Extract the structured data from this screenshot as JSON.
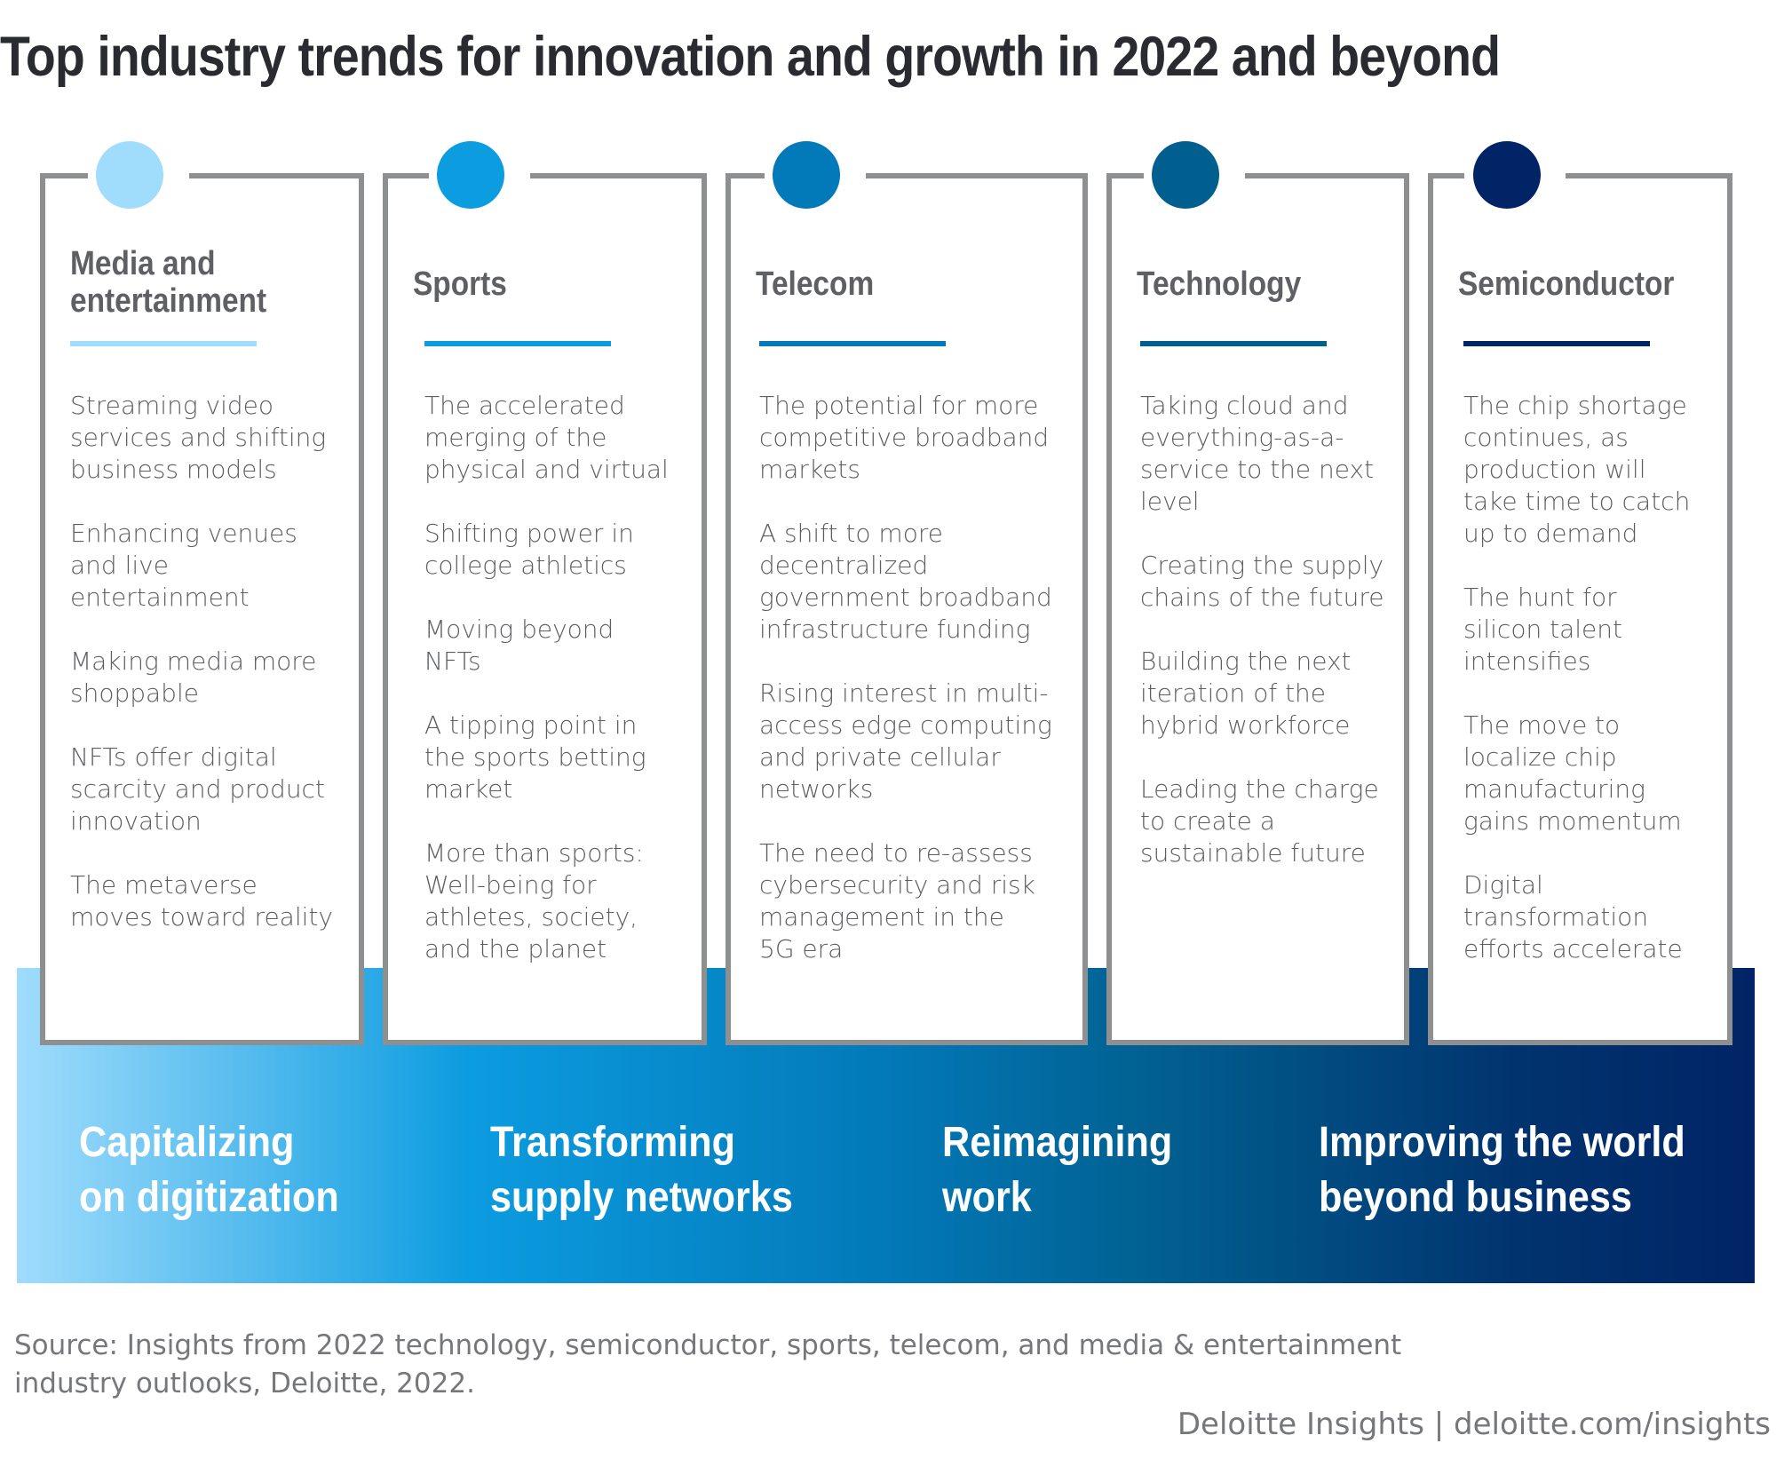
{
  "title": "Top industry trends for innovation and growth in 2022 and beyond",
  "colors": {
    "media": "#a0dcfc",
    "sports": "#0c9ce0",
    "telecom": "#0279b8",
    "technology": "#015f8f",
    "semiconductor": "#012466",
    "border": "#8e8f91"
  },
  "themes": [
    {
      "lines": [
        "Capitalizing",
        "on digitization"
      ]
    },
    {
      "lines": [
        "Transforming",
        "supply networks"
      ]
    },
    {
      "lines": [
        "Reimagining",
        "work"
      ]
    },
    {
      "lines": [
        "Improving the world",
        "beyond business"
      ]
    }
  ],
  "industries": [
    {
      "title": [
        "Media and",
        "entertainment"
      ],
      "items": [
        [
          "Streaming video",
          "services and shifting",
          "business models"
        ],
        [
          "Enhancing venues",
          "and live",
          "entertainment"
        ],
        [
          "Making media more",
          "shoppable"
        ],
        [
          "NFTs offer digital",
          "scarcity and product",
          "innovation"
        ],
        [
          "The metaverse",
          "moves toward reality"
        ]
      ]
    },
    {
      "title": [
        "Sports"
      ],
      "items": [
        [
          "The accelerated",
          "merging of the",
          "physical and virtual"
        ],
        [
          "Shifting power in",
          "college athletics"
        ],
        [
          "Moving beyond",
          "NFTs"
        ],
        [
          "A tipping point in",
          "the sports betting",
          "market"
        ],
        [
          "More than sports:",
          "Well-being for",
          "athletes, society,",
          "and the planet"
        ]
      ]
    },
    {
      "title": [
        "Telecom"
      ],
      "items": [
        [
          "The potential for more",
          "competitive broadband",
          "markets"
        ],
        [
          "A shift to more",
          "decentralized",
          "government broadband",
          "infrastructure funding"
        ],
        [
          "Rising interest in multi-",
          "access edge computing",
          "and private cellular",
          "networks"
        ],
        [
          "The need to re-assess",
          "cybersecurity and risk",
          "management in the",
          "5G era"
        ]
      ]
    },
    {
      "title": [
        "Technology"
      ],
      "items": [
        [
          "Taking cloud and",
          "everything-as-a-",
          "service to the next",
          "level"
        ],
        [
          "Creating the supply",
          "chains of the future"
        ],
        [
          "Building the next",
          "iteration of the",
          "hybrid workforce"
        ],
        [
          "Leading the charge",
          "to create a",
          "sustainable future"
        ]
      ]
    },
    {
      "title": [
        "Semiconductor"
      ],
      "items": [
        [
          "The chip shortage",
          "continues, as",
          "production will",
          "take time to catch",
          "up to demand"
        ],
        [
          "The hunt for",
          "silicon talent",
          "intensifies"
        ],
        [
          "The move to",
          "localize chip",
          "manufacturing",
          "gains momentum"
        ],
        [
          "Digital",
          "transformation",
          "efforts accelerate"
        ]
      ]
    }
  ],
  "source": [
    "Source: Insights from 2022 technology, semiconductor, sports, telecom, and media & entertainment",
    "industry outlooks, Deloitte, 2022."
  ],
  "brand": "Deloitte Insights | deloitte.com/insights"
}
